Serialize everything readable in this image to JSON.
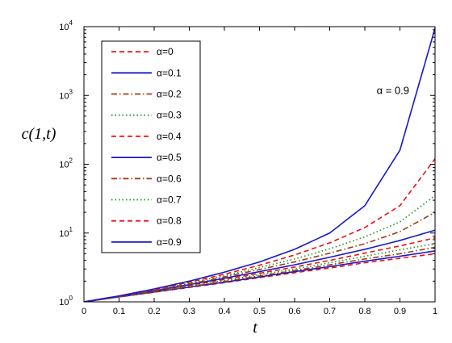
{
  "chart_data": {
    "type": "line",
    "title": "",
    "xlabel": "t",
    "ylabel": "c(1,t)",
    "xlim": [
      0,
      1
    ],
    "ylim": [
      1,
      10000
    ],
    "y_scale": "log",
    "grid": false,
    "legend_position": "top-left",
    "x_ticks": [
      "0",
      "0.1",
      "0.2",
      "0.3",
      "0.4",
      "0.5",
      "0.6",
      "0.7",
      "0.8",
      "0.9",
      "1"
    ],
    "y_ticks": [
      {
        "value": 1,
        "base": "10",
        "exp": "0"
      },
      {
        "value": 10,
        "base": "10",
        "exp": "1"
      },
      {
        "value": 100,
        "base": "10",
        "exp": "2"
      },
      {
        "value": 1000,
        "base": "10",
        "exp": "3"
      },
      {
        "value": 10000,
        "base": "10",
        "exp": "4"
      }
    ],
    "x": [
      0,
      0.1,
      0.2,
      0.3,
      0.4,
      0.5,
      0.6,
      0.7,
      0.8,
      0.9,
      1.0
    ],
    "series": [
      {
        "name": "α=0",
        "color": "#ee1111",
        "dash": "dashed",
        "values": [
          1,
          1.18,
          1.38,
          1.62,
          1.9,
          2.25,
          2.65,
          3.1,
          3.7,
          4.3,
          5.0
        ]
      },
      {
        "name": "α=0.1",
        "color": "#1a1acc",
        "dash": "solid",
        "values": [
          1,
          1.18,
          1.39,
          1.64,
          1.93,
          2.3,
          2.75,
          3.25,
          3.9,
          4.6,
          5.5
        ]
      },
      {
        "name": "α=0.2",
        "color": "#a03c14",
        "dash": "dashdot",
        "values": [
          1,
          1.18,
          1.4,
          1.66,
          1.98,
          2.38,
          2.85,
          3.45,
          4.2,
          5.0,
          6.2
        ]
      },
      {
        "name": "α=0.3",
        "color": "#119911",
        "dash": "dotted",
        "values": [
          1,
          1.19,
          1.42,
          1.7,
          2.05,
          2.48,
          3.0,
          3.7,
          4.6,
          5.7,
          7.0
        ]
      },
      {
        "name": "α=0.4",
        "color": "#ee1111",
        "dash": "dashed",
        "values": [
          1,
          1.19,
          1.43,
          1.74,
          2.12,
          2.6,
          3.2,
          4.0,
          5.1,
          6.5,
          8.5
        ]
      },
      {
        "name": "α=0.5",
        "color": "#1a1acc",
        "dash": "solid",
        "values": [
          1,
          1.2,
          1.45,
          1.78,
          2.2,
          2.75,
          3.45,
          4.45,
          5.8,
          7.8,
          11
        ]
      },
      {
        "name": "α=0.6",
        "color": "#a03c14",
        "dash": "dashdot",
        "values": [
          1,
          1.2,
          1.47,
          1.82,
          2.3,
          2.95,
          3.8,
          5.1,
          7.0,
          10.5,
          20
        ]
      },
      {
        "name": "α=0.7",
        "color": "#119911",
        "dash": "dotted",
        "values": [
          1,
          1.21,
          1.49,
          1.87,
          2.4,
          3.15,
          4.2,
          5.9,
          8.8,
          14.5,
          35
        ]
      },
      {
        "name": "α=0.8",
        "color": "#ee1111",
        "dash": "dashed",
        "values": [
          1,
          1.21,
          1.51,
          1.93,
          2.52,
          3.4,
          4.8,
          7.2,
          12,
          25,
          120
        ]
      },
      {
        "name": "α=0.9",
        "color": "#1a1acc",
        "dash": "solid",
        "values": [
          1,
          1.22,
          1.54,
          2.0,
          2.7,
          3.8,
          5.8,
          10,
          25,
          160,
          9500
        ]
      }
    ],
    "annotations": [
      {
        "text": "α = 0.9",
        "x": 0.88,
        "y": 1200
      }
    ]
  }
}
